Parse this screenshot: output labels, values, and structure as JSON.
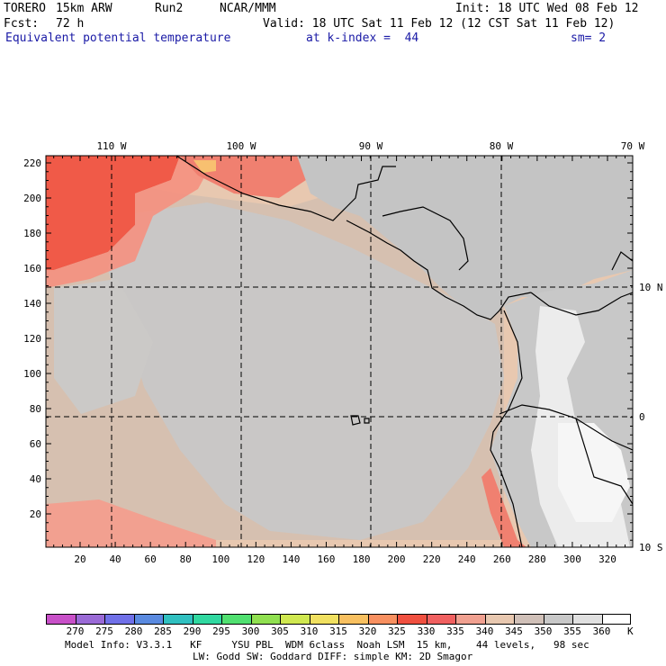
{
  "header": {
    "model": "TORERO",
    "resolution": "15km ARW",
    "run": "Run2",
    "org": "NCAR/MMM",
    "init": "Init: 18 UTC Wed 08 Feb 12",
    "fcst_label": "Fcst:",
    "fcst_value": "72 h",
    "valid": "Valid: 18 UTC Sat 11 Feb 12 (12 CST Sat 11 Feb 12)",
    "field": "Equivalent potential temperature",
    "level": "at k-index =  44",
    "smoothing": "sm= 2"
  },
  "map": {
    "top_lon_labels": [
      "110 W",
      "100 W",
      "90 W",
      "80 W",
      "70 W"
    ],
    "right_lat_labels": [
      "10 N",
      "0",
      "10 S"
    ],
    "left_y_ticks": [
      "220",
      "200",
      "180",
      "160",
      "140",
      "120",
      "100",
      "80",
      "60",
      "40",
      "20"
    ],
    "bottom_x_ticks": [
      "20",
      "40",
      "60",
      "80",
      "100",
      "120",
      "140",
      "160",
      "180",
      "200",
      "220",
      "240",
      "260",
      "280",
      "300",
      "320"
    ],
    "ocean_color": "#e8c8b0"
  },
  "colorbar": {
    "labels": [
      "270",
      "275",
      "280",
      "285",
      "290",
      "295",
      "300",
      "305",
      "310",
      "315",
      "320",
      "325",
      "330",
      "335",
      "340",
      "345",
      "350",
      "355",
      "360"
    ],
    "unit": "K",
    "colors": [
      "#c850c8",
      "#9a6ad6",
      "#7070e8",
      "#5a8ae0",
      "#30c0c0",
      "#30d8a0",
      "#50e070",
      "#90e050",
      "#d0e850",
      "#f0e060",
      "#f8c060",
      "#f89060",
      "#f05040",
      "#f06060",
      "#f0a090",
      "#e8c8b0",
      "#d0c0b8",
      "#c8c8c8",
      "#e0e0e0",
      "#ffffff"
    ]
  },
  "footer": {
    "line1": "Model Info: V3.3.1   KF     YSU PBL  WDM 6class  Noah LSM  15 km,    44 levels,   98 sec",
    "line2": "LW: Godd SW: Goddard DIFF: simple KM: 2D Smagor"
  }
}
